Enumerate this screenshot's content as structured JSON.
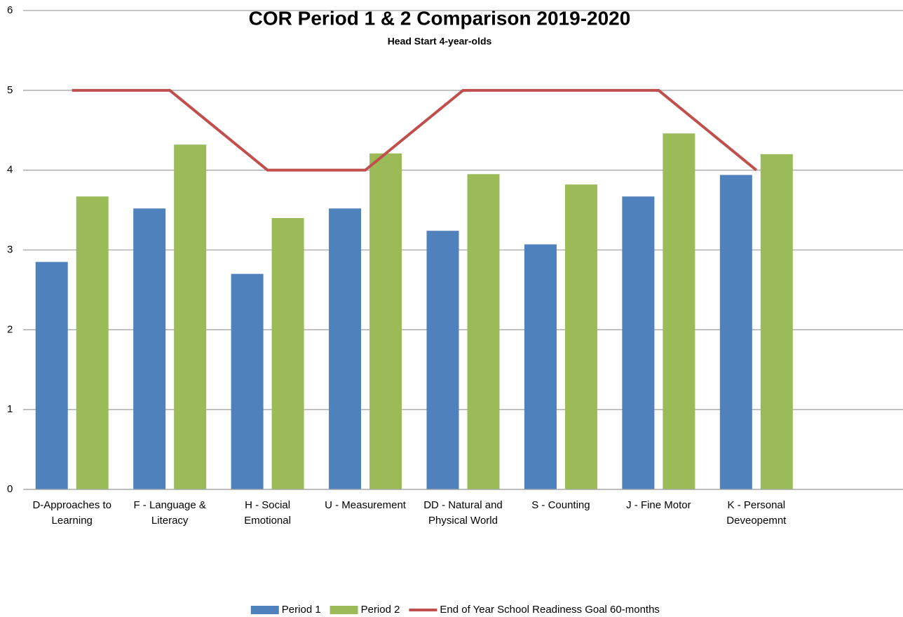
{
  "chart_data": {
    "type": "bar",
    "title": "COR Period 1 & 2 Comparison  2019-2020",
    "subtitle": "Head Start 4-year-olds",
    "categories": [
      "D-Approaches to Learning",
      "F - Language & Literacy",
      "H - Social Emotional",
      "U - Measurement",
      "DD - Natural and Physical World",
      "S - Counting",
      "J - Fine Motor",
      "K - Personal Deveopemnt",
      null
    ],
    "series": [
      {
        "name": "Period 1",
        "type": "bar",
        "color": "#4f81bd",
        "values": [
          2.85,
          3.52,
          2.7,
          3.52,
          3.24,
          3.07,
          3.67,
          3.94,
          null
        ]
      },
      {
        "name": "Period 2",
        "type": "bar",
        "color": "#9bbb59",
        "values": [
          3.67,
          4.32,
          3.4,
          4.21,
          3.95,
          3.82,
          4.46,
          4.2,
          null
        ]
      },
      {
        "name": "End of Year School Readiness Goal 60-months",
        "type": "line",
        "color": "#c0504d",
        "values": [
          5,
          5,
          4,
          4,
          5,
          5,
          5,
          4,
          null
        ]
      }
    ],
    "ylim": [
      0,
      6
    ],
    "yticks": [
      0,
      1,
      2,
      3,
      4,
      5,
      6
    ],
    "grid": true,
    "legend": "bottom"
  }
}
